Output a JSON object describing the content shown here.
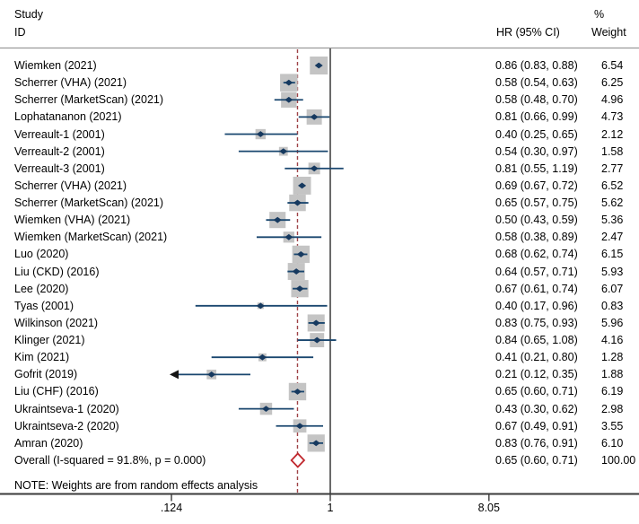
{
  "header": {
    "study": "Study",
    "id": "ID",
    "percent": "%",
    "hr": "HR (95% CI)",
    "weight": "Weight"
  },
  "note": {
    "text": "NOTE: Weights are from random effects analysis"
  },
  "colors": {
    "ci_line": "#1a476f",
    "marker": "#16395f",
    "box": "#c4c4c4",
    "overall_diamond": "#c0272d",
    "dashed_line": "#9e4347",
    "null_line": "#2b2b2b",
    "axis_line": "#3a3a3a",
    "separator": "#999999",
    "arrow": "#141414",
    "text": "#000000"
  },
  "chart_data": {
    "type": "forest",
    "xscale": "log",
    "effect_label": "HR",
    "null_value": 1,
    "dashed_at": 0.65,
    "axis_ticks": [
      {
        "label": ".124",
        "value": 0.124
      },
      {
        "label": "1",
        "value": 1
      },
      {
        "label": "8.05",
        "value": 8.05
      }
    ],
    "studies": [
      {
        "label": "Wiemken (2021)",
        "hr": 0.86,
        "lo": 0.83,
        "hi": 0.88,
        "weight": 6.54,
        "hr_text": "0.86 (0.83, 0.88)",
        "weight_text": "6.54"
      },
      {
        "label": "Scherrer (VHA) (2021)",
        "hr": 0.58,
        "lo": 0.54,
        "hi": 0.63,
        "weight": 6.25,
        "hr_text": "0.58 (0.54, 0.63)",
        "weight_text": "6.25"
      },
      {
        "label": "Scherrer (MarketScan) (2021)",
        "hr": 0.58,
        "lo": 0.48,
        "hi": 0.7,
        "weight": 4.96,
        "hr_text": "0.58 (0.48, 0.70)",
        "weight_text": "4.96"
      },
      {
        "label": "Lophatananon (2021)",
        "hr": 0.81,
        "lo": 0.66,
        "hi": 0.99,
        "weight": 4.73,
        "hr_text": "0.81 (0.66, 0.99)",
        "weight_text": "4.73"
      },
      {
        "label": "Verreault-1 (2001)",
        "hr": 0.4,
        "lo": 0.25,
        "hi": 0.65,
        "weight": 2.12,
        "hr_text": "0.40 (0.25, 0.65)",
        "weight_text": "2.12"
      },
      {
        "label": "Verreault-2 (2001)",
        "hr": 0.54,
        "lo": 0.3,
        "hi": 0.97,
        "weight": 1.58,
        "hr_text": "0.54 (0.30, 0.97)",
        "weight_text": "1.58"
      },
      {
        "label": "Verreault-3 (2001)",
        "hr": 0.81,
        "lo": 0.55,
        "hi": 1.19,
        "weight": 2.77,
        "hr_text": "0.81 (0.55, 1.19)",
        "weight_text": "2.77"
      },
      {
        "label": "Scherrer (VHA) (2021)",
        "hr": 0.69,
        "lo": 0.67,
        "hi": 0.72,
        "weight": 6.52,
        "hr_text": "0.69 (0.67, 0.72)",
        "weight_text": "6.52"
      },
      {
        "label": "Scherrer (MarketScan) (2021)",
        "hr": 0.65,
        "lo": 0.57,
        "hi": 0.75,
        "weight": 5.62,
        "hr_text": "0.65 (0.57, 0.75)",
        "weight_text": "5.62"
      },
      {
        "label": "Wiemken (VHA) (2021)",
        "hr": 0.5,
        "lo": 0.43,
        "hi": 0.59,
        "weight": 5.36,
        "hr_text": "0.50 (0.43, 0.59)",
        "weight_text": "5.36"
      },
      {
        "label": "Wiemken (MarketScan) (2021)",
        "hr": 0.58,
        "lo": 0.38,
        "hi": 0.89,
        "weight": 2.47,
        "hr_text": "0.58 (0.38, 0.89)",
        "weight_text": "2.47"
      },
      {
        "label": "Luo (2020)",
        "hr": 0.68,
        "lo": 0.62,
        "hi": 0.74,
        "weight": 6.15,
        "hr_text": "0.68 (0.62, 0.74)",
        "weight_text": "6.15"
      },
      {
        "label": "Liu (CKD) (2016)",
        "hr": 0.64,
        "lo": 0.57,
        "hi": 0.71,
        "weight": 5.93,
        "hr_text": "0.64 (0.57, 0.71)",
        "weight_text": "5.93"
      },
      {
        "label": "Lee (2020)",
        "hr": 0.67,
        "lo": 0.61,
        "hi": 0.74,
        "weight": 6.07,
        "hr_text": "0.67 (0.61, 0.74)",
        "weight_text": "6.07"
      },
      {
        "label": "Tyas (2001)",
        "hr": 0.4,
        "lo": 0.17,
        "hi": 0.96,
        "weight": 0.83,
        "hr_text": "0.40 (0.17, 0.96)",
        "weight_text": "0.83"
      },
      {
        "label": "Wilkinson (2021)",
        "hr": 0.83,
        "lo": 0.75,
        "hi": 0.93,
        "weight": 5.96,
        "hr_text": "0.83 (0.75, 0.93)",
        "weight_text": "5.96"
      },
      {
        "label": "Klinger (2021)",
        "hr": 0.84,
        "lo": 0.65,
        "hi": 1.08,
        "weight": 4.16,
        "hr_text": "0.84 (0.65, 1.08)",
        "weight_text": "4.16"
      },
      {
        "label": "Kim (2021)",
        "hr": 0.41,
        "lo": 0.21,
        "hi": 0.8,
        "weight": 1.28,
        "hr_text": "0.41 (0.21, 0.80)",
        "weight_text": "1.28"
      },
      {
        "label": "Gofrit (2019)",
        "hr": 0.21,
        "lo": 0.12,
        "hi": 0.35,
        "weight": 1.88,
        "hr_text": "0.21 (0.12, 0.35)",
        "weight_text": "1.88",
        "arrow_lo": true
      },
      {
        "label": "Liu (CHF) (2016)",
        "hr": 0.65,
        "lo": 0.6,
        "hi": 0.71,
        "weight": 6.19,
        "hr_text": "0.65 (0.60, 0.71)",
        "weight_text": "6.19"
      },
      {
        "label": "Ukraintseva-1 (2020)",
        "hr": 0.43,
        "lo": 0.3,
        "hi": 0.62,
        "weight": 2.98,
        "hr_text": "0.43 (0.30, 0.62)",
        "weight_text": "2.98"
      },
      {
        "label": "Ukraintseva-2 (2020)",
        "hr": 0.67,
        "lo": 0.49,
        "hi": 0.91,
        "weight": 3.55,
        "hr_text": "0.67 (0.49, 0.91)",
        "weight_text": "3.55"
      },
      {
        "label": "Amran (2020)",
        "hr": 0.83,
        "lo": 0.76,
        "hi": 0.91,
        "weight": 6.1,
        "hr_text": "0.83 (0.76, 0.91)",
        "weight_text": "6.10"
      }
    ],
    "overall": {
      "label": "Overall  (I-squared = 91.8%, p = 0.000)",
      "hr": 0.65,
      "lo": 0.6,
      "hi": 0.71,
      "hr_text": "0.65 (0.60, 0.71)",
      "weight_text": "100.00"
    }
  }
}
